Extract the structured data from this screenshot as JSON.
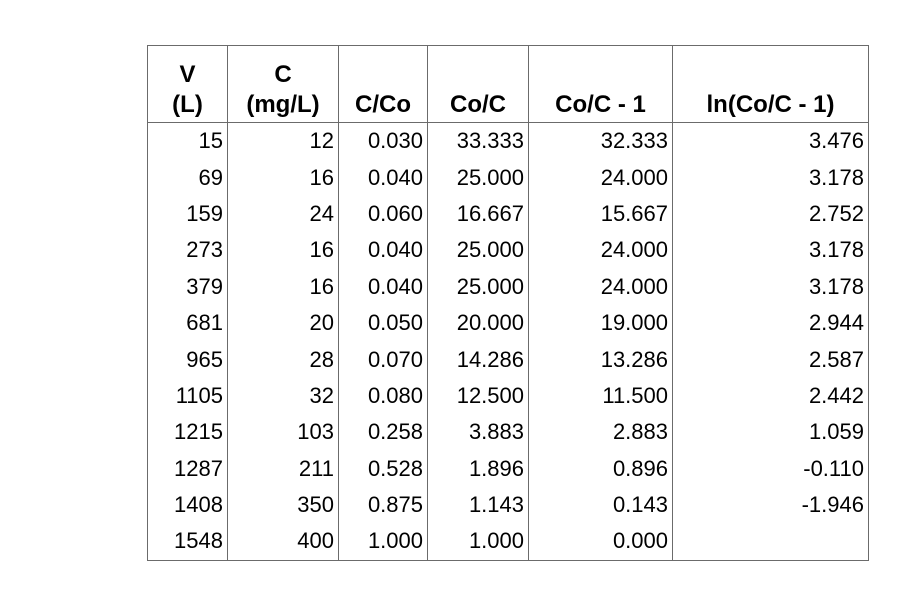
{
  "chart_data": {
    "type": "table",
    "title": "",
    "columns": [
      "V\n(L)",
      "C\n(mg/L)",
      "C/Co",
      "Co/C",
      "Co/C - 1",
      "ln(Co/C - 1)"
    ],
    "rows": [
      [
        "15",
        "12",
        "0.030",
        "33.333",
        "32.333",
        "3.476"
      ],
      [
        "69",
        "16",
        "0.040",
        "25.000",
        "24.000",
        "3.178"
      ],
      [
        "159",
        "24",
        "0.060",
        "16.667",
        "15.667",
        "2.752"
      ],
      [
        "273",
        "16",
        "0.040",
        "25.000",
        "24.000",
        "3.178"
      ],
      [
        "379",
        "16",
        "0.040",
        "25.000",
        "24.000",
        "3.178"
      ],
      [
        "681",
        "20",
        "0.050",
        "20.000",
        "19.000",
        "2.944"
      ],
      [
        "965",
        "28",
        "0.070",
        "14.286",
        "13.286",
        "2.587"
      ],
      [
        "1105",
        "32",
        "0.080",
        "12.500",
        "11.500",
        "2.442"
      ],
      [
        "1215",
        "103",
        "0.258",
        "3.883",
        "2.883",
        "1.059"
      ],
      [
        "1287",
        "211",
        "0.528",
        "1.896",
        "0.896",
        "-0.110"
      ],
      [
        "1408",
        "350",
        "0.875",
        "1.143",
        "0.143",
        "-1.946"
      ],
      [
        "1548",
        "400",
        "1.000",
        "1.000",
        "0.000",
        ""
      ]
    ],
    "colors": {
      "border": "#6b6b6b",
      "text": "#000000",
      "background": "#ffffff"
    }
  }
}
